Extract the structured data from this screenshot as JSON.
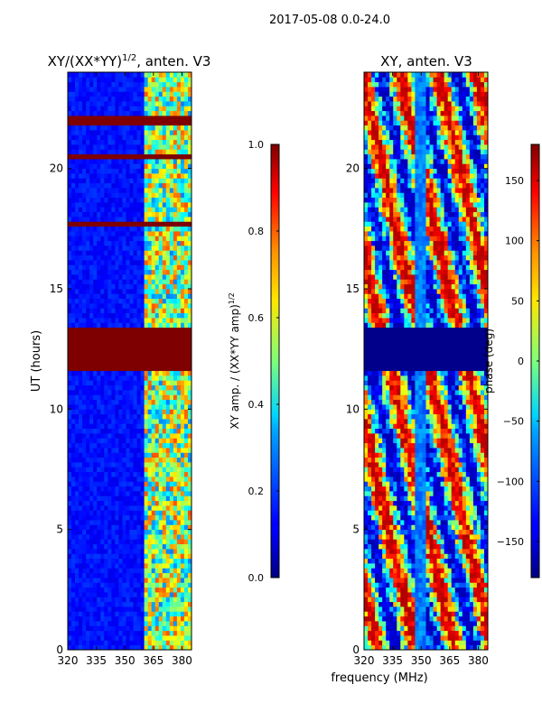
{
  "figure_title": "2017-05-08 0.0-24.0",
  "shared_xlabel": "frequency (MHz)",
  "colors": {
    "jet": [
      "#00007f",
      "#0000ff",
      "#007fff",
      "#00ffff",
      "#7fff7f",
      "#ffff00",
      "#ff7f00",
      "#ff0000",
      "#7f0000"
    ],
    "flag_red": "#7f0000",
    "gap_blue": "#00008b"
  },
  "chart_data": [
    {
      "type": "heatmap",
      "title_main": "XY/(XX*YY)",
      "title_sup": "1/2",
      "title_rest": ", anten. V3",
      "xlabel": "",
      "ylabel": "UT (hours)",
      "xlim": [
        320,
        385
      ],
      "ylim": [
        0,
        24
      ],
      "xticks": [
        320,
        335,
        350,
        365,
        380
      ],
      "yticks": [
        0,
        5,
        10,
        15,
        20
      ],
      "colorbar": {
        "label_main": "XY amp. / (XX*YY amp)",
        "label_sup": "1/2",
        "range": [
          0.0,
          1.0
        ],
        "ticks": [
          "0.0",
          "0.2",
          "0.4",
          "0.6",
          "0.8",
          "1.0"
        ]
      },
      "flagged_hours": [
        [
          11.65,
          13.3
        ],
        [
          17.55,
          17.75
        ],
        [
          20.45,
          20.6
        ],
        [
          21.9,
          22.1
        ],
        [
          22.35,
          22.45
        ]
      ]
    },
    {
      "type": "heatmap",
      "title_main": "XY, anten. V3",
      "xlabel": "frequency (MHz)",
      "ylabel": "",
      "xlim": [
        320,
        385
      ],
      "ylim": [
        0,
        24
      ],
      "xticks": [
        320,
        335,
        350,
        365,
        380
      ],
      "yticks": [
        0,
        5,
        10,
        15,
        20
      ],
      "colorbar": {
        "label_main": "phase (deg)",
        "range": [
          -180,
          180
        ],
        "ticks": [
          "-150",
          "-100",
          "-50",
          "0",
          "50",
          "100",
          "150"
        ]
      },
      "gap_hours": [
        [
          11.65,
          13.3
        ]
      ]
    }
  ]
}
